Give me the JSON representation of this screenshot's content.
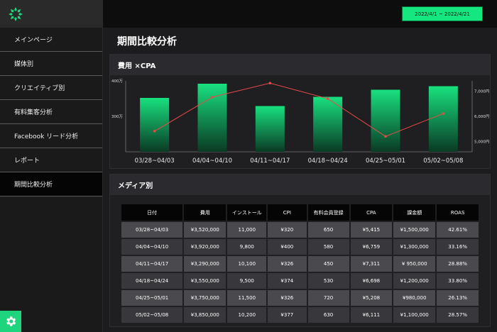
{
  "header": {
    "date_range": "2022/4/1 ~ 2022/4/21"
  },
  "sidebar": {
    "items": [
      {
        "label": "メインページ",
        "active": false
      },
      {
        "label": "媒体別",
        "active": false
      },
      {
        "label": "クリエイティブ別",
        "active": false
      },
      {
        "label": "有料集客分析",
        "active": false
      },
      {
        "label": "Facebook リード分析",
        "active": false
      },
      {
        "label": "レポート",
        "active": false
      },
      {
        "label": "期間比較分析",
        "active": true
      }
    ],
    "settings_icon": "gear-icon"
  },
  "page": {
    "title": "期間比較分析"
  },
  "chart_card": {
    "title": "費用 ×CPA"
  },
  "chart_data": {
    "type": "bar",
    "categories": [
      "03/28~04/03",
      "04/04~04/10",
      "04/11~04/17",
      "04/18~04/24",
      "04/25~05/01",
      "05/02~05/08"
    ],
    "series": [
      {
        "values": [
          352,
          392,
          329,
          355,
          375,
          385
        ],
        "kind": "bar",
        "axis": "left",
        "color": "#1ed47d"
      },
      {
        "values": [
          5415,
          6759,
          7311,
          6698,
          5208,
          6111
        ],
        "kind": "line",
        "axis": "right",
        "color": "#e84a4a"
      }
    ],
    "yleft": {
      "ticks": [
        "400万",
        "300万"
      ],
      "tick_values": [
        400,
        300
      ],
      "range": [
        200,
        400
      ]
    },
    "yright": {
      "ticks": [
        "7,000円",
        "6,000円",
        "5,000円"
      ],
      "tick_values": [
        7000,
        6000,
        5000
      ],
      "range": [
        4600,
        7400
      ]
    }
  },
  "table_card": {
    "title": "メディア別",
    "columns": [
      "日付",
      "費用",
      "インストール",
      "CPI",
      "有料会員登録",
      "CPA",
      "課金額",
      "ROAS"
    ],
    "rows": [
      [
        "03/28~04/03",
        "¥3,520,000",
        "11,000",
        "¥320",
        "650",
        "¥5,415",
        "¥1,500,000",
        "42.61%"
      ],
      [
        "04/04~04/10",
        "¥3,920,000",
        "9,800",
        "¥400",
        "580",
        "¥6,759",
        "¥1,300,000",
        "33.16%"
      ],
      [
        "04/11~04/17",
        "¥3,290,000",
        "10,100",
        "¥326",
        "450",
        "¥7,311",
        "¥ 950,000",
        "28.88%"
      ],
      [
        "04/18~04/24",
        "¥3,550,000",
        "9,500",
        "¥374",
        "530",
        "¥6,698",
        "¥1,200,000",
        "33.80%"
      ],
      [
        "04/25~05/01",
        "¥3,750,000",
        "11,500",
        "¥326",
        "720",
        "¥5,208",
        "¥980,000",
        "26.13%"
      ],
      [
        "05/02~05/08",
        "¥3,850,000",
        "10,200",
        "¥377",
        "630",
        "¥6,111",
        "¥1,100,000",
        "28.57%"
      ]
    ]
  }
}
